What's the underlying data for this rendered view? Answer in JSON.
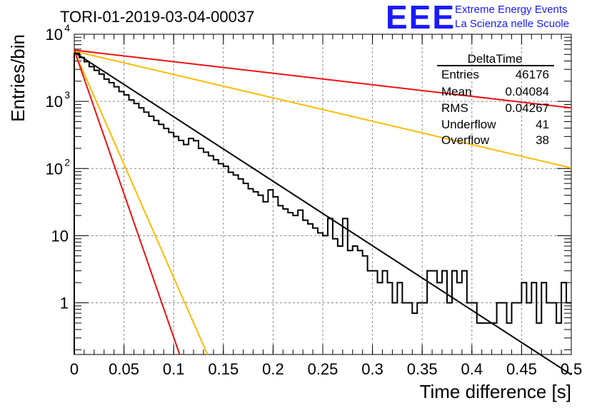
{
  "logo": {
    "letters": "EEE",
    "line1": "Extreme Energy Events",
    "line2": "La Scienza nelle Scuole"
  },
  "stats_box": {
    "name": "DeltaTime",
    "rows": [
      {
        "label": "Entries",
        "value": "46176"
      },
      {
        "label": "Mean",
        "value": "0.04084"
      },
      {
        "label": "RMS",
        "value": "0.04267"
      },
      {
        "label": "Underflow",
        "value": "41"
      },
      {
        "label": "Overflow",
        "value": "38"
      }
    ]
  },
  "chart_data": {
    "type": "line",
    "title": "TORI-01-2019-03-04-00037",
    "xlabel": "Time difference [s]",
    "ylabel": "Entries/bin",
    "xlim": [
      0,
      0.5
    ],
    "ylim": [
      0.17,
      10000
    ],
    "y_scale": "log",
    "grid": true,
    "x_ticks": [
      "0",
      "0.05",
      "0.1",
      "0.15",
      "0.2",
      "0.25",
      "0.3",
      "0.35",
      "0.4",
      "0.45",
      "0.5"
    ],
    "y_ticks": [
      {
        "value": 1,
        "label": "1"
      },
      {
        "value": 10,
        "label": "10"
      },
      {
        "value": 100,
        "label": "10",
        "exp": "2"
      },
      {
        "value": 1000,
        "label": "10",
        "exp": "3"
      },
      {
        "value": 10000,
        "label": "10",
        "exp": "4"
      }
    ],
    "histogram": {
      "name": "DeltaTime",
      "color": "#000000",
      "bin_width": 0.005,
      "x": [
        0.0,
        0.005,
        0.01,
        0.015,
        0.02,
        0.025,
        0.03,
        0.035,
        0.04,
        0.045,
        0.05,
        0.055,
        0.06,
        0.065,
        0.07,
        0.075,
        0.08,
        0.085,
        0.09,
        0.095,
        0.1,
        0.105,
        0.11,
        0.115,
        0.12,
        0.125,
        0.13,
        0.135,
        0.14,
        0.145,
        0.15,
        0.155,
        0.16,
        0.165,
        0.17,
        0.175,
        0.18,
        0.185,
        0.19,
        0.195,
        0.2,
        0.205,
        0.21,
        0.215,
        0.22,
        0.225,
        0.23,
        0.235,
        0.24,
        0.245,
        0.25,
        0.255,
        0.26,
        0.265,
        0.27,
        0.275,
        0.28,
        0.285,
        0.29,
        0.295,
        0.3,
        0.305,
        0.31,
        0.315,
        0.32,
        0.325,
        0.33,
        0.335,
        0.34,
        0.345,
        0.35,
        0.355,
        0.36,
        0.365,
        0.37,
        0.375,
        0.38,
        0.385,
        0.39,
        0.395,
        0.4,
        0.405,
        0.41,
        0.415,
        0.42,
        0.425,
        0.43,
        0.435,
        0.44,
        0.445,
        0.45,
        0.455,
        0.46,
        0.465,
        0.47,
        0.475,
        0.48,
        0.485,
        0.49,
        0.495
      ],
      "y": [
        5200,
        4500,
        3900,
        3300,
        2900,
        2550,
        2150,
        1900,
        1650,
        1400,
        1250,
        1050,
        930,
        800,
        690,
        600,
        520,
        455,
        395,
        345,
        300,
        262,
        228,
        280,
        260,
        200,
        175,
        155,
        135,
        118,
        108,
        88,
        80,
        70,
        60,
        50,
        45,
        40,
        32,
        48,
        38,
        28,
        25,
        22,
        20,
        24,
        17,
        15,
        13,
        11,
        10,
        18,
        9,
        7,
        18,
        6,
        7,
        6,
        5,
        3,
        3,
        2,
        3,
        2,
        1,
        2,
        1,
        1,
        0.7,
        1,
        1,
        3,
        3,
        2,
        3,
        1,
        3,
        2,
        3,
        1,
        1,
        0.5,
        0.5,
        0.5,
        0.5,
        1,
        1,
        0.5,
        1,
        1,
        2,
        1,
        2,
        0.5,
        2,
        1,
        1,
        0.5,
        2,
        1
      ]
    },
    "fit_curves": [
      {
        "color": "#000000",
        "x0": 0,
        "y0": 5400,
        "x1": 0.5,
        "y1": 0.03
      },
      {
        "color": "#ee1111",
        "x0": 0,
        "y0": 5800,
        "x1": 0.5,
        "y1": 800
      },
      {
        "color": "#ffbb00",
        "x0": 0,
        "y0": 5600,
        "x1": 0.5,
        "y1": 102
      },
      {
        "color": "#ffbb00",
        "x0": 0,
        "y0": 5600,
        "x1": 0.134,
        "y1": 0.17
      },
      {
        "color": "#ee1111",
        "x0": 0,
        "y0": 5800,
        "x1": 0.106,
        "y1": 0.17
      }
    ]
  }
}
